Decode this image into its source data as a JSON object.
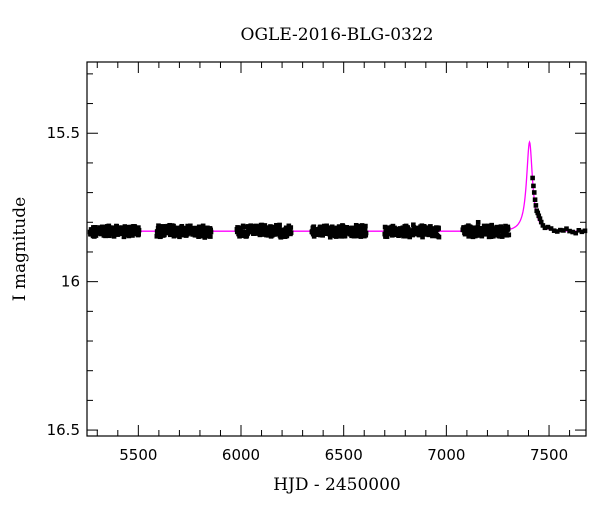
{
  "chart_data": {
    "type": "scatter",
    "title": "OGLE-2016-BLG-0322",
    "xlabel": "HJD - 2450000",
    "ylabel": "I magnitude",
    "xlim": [
      5250,
      7680
    ],
    "ylim": [
      16.52,
      15.26
    ],
    "y_inverted": true,
    "x_ticks": [
      5500,
      6000,
      6500,
      7000,
      7500
    ],
    "x_tick_labels": [
      "5500",
      "6000",
      "6500",
      "7000",
      "7500"
    ],
    "y_ticks": [
      15.5,
      16.0,
      16.5
    ],
    "y_tick_labels": [
      "15.5",
      "16",
      "16.5"
    ],
    "x_minor_step": 100,
    "y_minor_step": 0.1,
    "grid": false,
    "legend": "none",
    "colors": {
      "data": "#000000",
      "model": "#ff00ff",
      "frame": "#000000"
    },
    "baseline_mag": 15.83,
    "series": [
      {
        "kind": "points",
        "season_ranges": [
          [
            5265,
            5505
          ],
          [
            5590,
            5855
          ],
          [
            5980,
            6245
          ],
          [
            6345,
            6610
          ],
          [
            6700,
            6965
          ],
          [
            7080,
            7305
          ]
        ],
        "outliers": [
          {
            "x": 7155,
            "y": 15.8
          }
        ],
        "event_points": [
          {
            "x": 7420,
            "y": 15.65
          },
          {
            "x": 7424,
            "y": 15.68
          },
          {
            "x": 7428,
            "y": 15.7
          },
          {
            "x": 7432,
            "y": 15.72
          },
          {
            "x": 7436,
            "y": 15.74
          },
          {
            "x": 7440,
            "y": 15.76
          },
          {
            "x": 7445,
            "y": 15.77
          },
          {
            "x": 7450,
            "y": 15.78
          },
          {
            "x": 7456,
            "y": 15.79
          },
          {
            "x": 7462,
            "y": 15.8
          },
          {
            "x": 7470,
            "y": 15.81
          },
          {
            "x": 7480,
            "y": 15.815
          },
          {
            "x": 7495,
            "y": 15.82
          },
          {
            "x": 7510,
            "y": 15.82
          },
          {
            "x": 7525,
            "y": 15.825
          },
          {
            "x": 7540,
            "y": 15.83
          },
          {
            "x": 7555,
            "y": 15.83
          },
          {
            "x": 7570,
            "y": 15.83
          },
          {
            "x": 7585,
            "y": 15.825
          },
          {
            "x": 7600,
            "y": 15.83
          },
          {
            "x": 7615,
            "y": 15.83
          },
          {
            "x": 7630,
            "y": 15.835
          },
          {
            "x": 7645,
            "y": 15.83
          },
          {
            "x": 7660,
            "y": 15.83
          },
          {
            "x": 7675,
            "y": 15.83
          }
        ]
      },
      {
        "kind": "model",
        "peak_time": 7405,
        "peak_mag": 15.53,
        "x_range": [
          5265,
          7680
        ]
      }
    ]
  }
}
